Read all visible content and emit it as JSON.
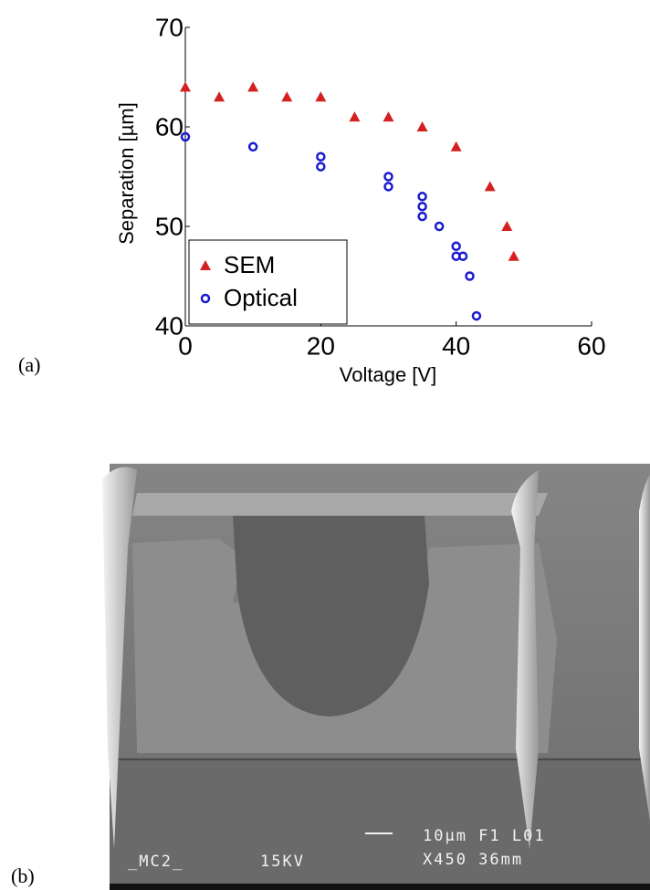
{
  "chart_data": {
    "type": "scatter",
    "xlabel": "Voltage [V]",
    "ylabel": "Separation [µm]",
    "xlim": [
      0,
      60
    ],
    "xticks": [
      0,
      20,
      40,
      60
    ],
    "ylim": [
      40,
      70
    ],
    "yticks": [
      40,
      50,
      60,
      70
    ],
    "legend": "lower left",
    "series": [
      {
        "name": "SEM",
        "color": "#d42020",
        "marker": "triangle",
        "x": [
          0,
          5,
          10,
          15,
          20,
          25,
          30,
          35,
          40,
          45,
          47.5,
          48.5
        ],
        "values": [
          64,
          63,
          64,
          63,
          63,
          61,
          61,
          60,
          58,
          54,
          50,
          47
        ]
      },
      {
        "name": "Optical",
        "color": "#1a1ad0",
        "marker": "circle",
        "x": [
          0,
          10,
          20,
          20,
          30,
          30,
          35,
          35,
          35,
          37.5,
          40,
          40,
          41,
          42,
          43
        ],
        "values": [
          59,
          58,
          57,
          56,
          55,
          54,
          53,
          52,
          51,
          50,
          48,
          47,
          47,
          45,
          41
        ]
      }
    ]
  },
  "panels": {
    "a": "(a)",
    "b": "(b)"
  },
  "sem_image": {
    "labels": [
      "_MC2_",
      "15KV",
      "10µm F1 L01",
      "X450 36mm"
    ]
  }
}
